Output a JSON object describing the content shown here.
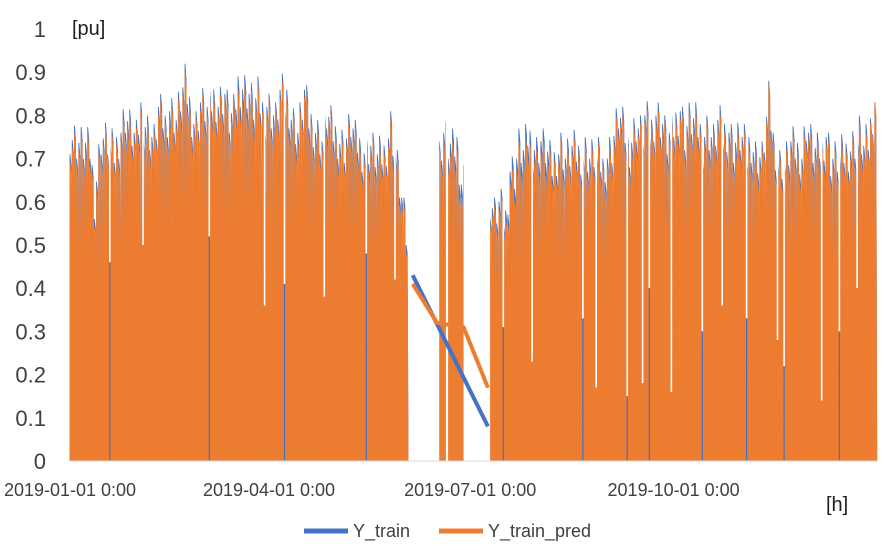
{
  "chart_data": {
    "type": "area",
    "ylabel": "[pu]",
    "xlabel": "[h]",
    "ylim": [
      0,
      1
    ],
    "y_ticks": [
      "0",
      "0.1",
      "0.2",
      "0.3",
      "0.4",
      "0.5",
      "0.6",
      "0.7",
      "0.8",
      "0.9",
      "1"
    ],
    "x_tick_labels": [
      "2019-01-01 0:00",
      "2019-04-01 0:00",
      "2019-07-01 0:00",
      "2019-10-01 0:00"
    ],
    "x_range_days": [
      0,
      365
    ],
    "x_tick_days": [
      0,
      90,
      181,
      273
    ],
    "grid": false,
    "legend_position": "bottom",
    "series": [
      {
        "name": "Y_train",
        "color": "#4472C4",
        "peaks": [
          [
            0,
            0.76
          ],
          [
            3,
            0.74
          ],
          [
            6,
            0.73
          ],
          [
            9,
            0.72
          ],
          [
            11,
            0.61
          ],
          [
            14,
            0.75
          ],
          [
            17,
            0.74
          ],
          [
            20,
            0.71
          ],
          [
            23,
            0.77
          ],
          [
            25,
            0.8
          ],
          [
            28,
            0.76
          ],
          [
            30,
            0.74
          ],
          [
            32,
            0.81
          ],
          [
            35,
            0.77
          ],
          [
            38,
            0.74
          ],
          [
            40,
            0.81
          ],
          [
            43,
            0.78
          ],
          [
            45,
            0.82
          ],
          [
            48,
            0.79
          ],
          [
            50,
            0.84
          ],
          [
            52,
            0.87
          ],
          [
            55,
            0.8
          ],
          [
            57,
            0.78
          ],
          [
            59,
            0.83
          ],
          [
            62,
            0.81
          ],
          [
            65,
            0.84
          ],
          [
            67,
            0.83
          ],
          [
            70,
            0.85
          ],
          [
            72,
            0.79
          ],
          [
            74,
            0.8
          ],
          [
            76,
            0.87
          ],
          [
            78,
            0.87
          ],
          [
            81,
            0.85
          ],
          [
            83,
            0.82
          ],
          [
            85,
            0.84
          ],
          [
            87,
            0.81
          ],
          [
            89,
            0.83
          ],
          [
            91,
            0.81
          ],
          [
            93,
            0.79
          ],
          [
            95,
            0.85
          ],
          [
            98,
            0.84
          ],
          [
            100,
            0.8
          ],
          [
            103,
            0.76
          ],
          [
            106,
            0.85
          ],
          [
            108,
            0.79
          ],
          [
            111,
            0.77
          ],
          [
            114,
            0.74
          ],
          [
            116,
            0.8
          ],
          [
            119,
            0.76
          ],
          [
            121,
            0.75
          ],
          [
            124,
            0.73
          ],
          [
            127,
            0.78
          ],
          [
            129,
            0.74
          ],
          [
            132,
            0.72
          ],
          [
            136,
            0.73
          ],
          [
            139,
            0.7
          ],
          [
            142,
            0.71
          ],
          [
            145,
            0.78
          ],
          [
            148,
            0.68
          ],
          [
            150,
            0.6
          ],
          [
            152,
            0.52
          ],
          [
            167,
            0.71
          ],
          [
            169,
            0.76
          ],
          [
            171,
            0.73
          ],
          [
            173,
            0.72
          ],
          [
            175,
            0.73
          ],
          [
            177,
            0.65
          ],
          [
            179,
            0.66
          ],
          [
            181,
            0.6
          ],
          [
            183,
            0.63
          ],
          [
            185,
            0.7
          ],
          [
            188,
            0.68
          ],
          [
            190,
            0.6
          ],
          [
            192,
            0.57
          ],
          [
            194,
            0.59
          ],
          [
            197,
            0.56
          ],
          [
            199,
            0.68
          ],
          [
            201,
            0.67
          ],
          [
            203,
            0.73
          ],
          [
            205,
            0.71
          ],
          [
            207,
            0.75
          ],
          [
            209,
            0.74
          ],
          [
            211,
            0.72
          ],
          [
            213,
            0.74
          ],
          [
            215,
            0.72
          ],
          [
            218,
            0.68
          ],
          [
            220,
            0.71
          ],
          [
            222,
            0.73
          ],
          [
            224,
            0.7
          ],
          [
            227,
            0.72
          ],
          [
            230,
            0.71
          ],
          [
            233,
            0.72
          ],
          [
            235,
            0.7
          ],
          [
            237,
            0.71
          ],
          [
            239,
            0.7
          ],
          [
            241,
            0.68
          ],
          [
            243,
            0.71
          ],
          [
            245,
            0.73
          ],
          [
            248,
            0.8
          ],
          [
            250,
            0.77
          ],
          [
            253,
            0.73
          ],
          [
            256,
            0.78
          ],
          [
            258,
            0.76
          ],
          [
            260,
            0.79
          ],
          [
            263,
            0.77
          ],
          [
            265,
            0.81
          ],
          [
            268,
            0.78
          ],
          [
            270,
            0.74
          ],
          [
            273,
            0.77
          ],
          [
            276,
            0.82
          ],
          [
            278,
            0.76
          ],
          [
            280,
            0.79
          ],
          [
            283,
            0.78
          ],
          [
            286,
            0.75
          ],
          [
            288,
            0.77
          ],
          [
            291,
            0.74
          ],
          [
            293,
            0.78
          ],
          [
            296,
            0.76
          ],
          [
            298,
            0.77
          ],
          [
            300,
            0.73
          ],
          [
            303,
            0.75
          ],
          [
            306,
            0.72
          ],
          [
            308,
            0.74
          ],
          [
            310,
            0.71
          ],
          [
            313,
            0.7
          ],
          [
            316,
            0.83
          ],
          [
            318,
            0.74
          ],
          [
            321,
            0.69
          ],
          [
            324,
            0.7
          ],
          [
            326,
            0.73
          ],
          [
            328,
            0.72
          ],
          [
            331,
            0.71
          ],
          [
            333,
            0.78
          ],
          [
            336,
            0.72
          ],
          [
            338,
            0.71
          ],
          [
            340,
            0.73
          ],
          [
            342,
            0.76
          ],
          [
            344,
            0.7
          ],
          [
            347,
            0.7
          ],
          [
            350,
            0.71
          ],
          [
            352,
            0.72
          ],
          [
            355,
            0.74
          ],
          [
            357,
            0.76
          ],
          [
            359,
            0.72
          ],
          [
            361,
            0.74
          ],
          [
            364,
            0.84
          ]
        ]
      },
      {
        "name": "Y_train_pred",
        "color": "#ED7D31",
        "peaks": [
          [
            0,
            0.74
          ],
          [
            3,
            0.72
          ],
          [
            6,
            0.71
          ],
          [
            9,
            0.7
          ],
          [
            11,
            0.59
          ],
          [
            14,
            0.73
          ],
          [
            17,
            0.73
          ],
          [
            20,
            0.69
          ],
          [
            23,
            0.75
          ],
          [
            25,
            0.78
          ],
          [
            28,
            0.74
          ],
          [
            30,
            0.72
          ],
          [
            32,
            0.79
          ],
          [
            35,
            0.75
          ],
          [
            38,
            0.72
          ],
          [
            40,
            0.79
          ],
          [
            43,
            0.76
          ],
          [
            45,
            0.8
          ],
          [
            48,
            0.77
          ],
          [
            50,
            0.82
          ],
          [
            52,
            0.85
          ],
          [
            55,
            0.78
          ],
          [
            57,
            0.76
          ],
          [
            59,
            0.81
          ],
          [
            62,
            0.79
          ],
          [
            65,
            0.82
          ],
          [
            67,
            0.81
          ],
          [
            70,
            0.83
          ],
          [
            72,
            0.77
          ],
          [
            74,
            0.78
          ],
          [
            76,
            0.84
          ],
          [
            78,
            0.84
          ],
          [
            81,
            0.83
          ],
          [
            83,
            0.8
          ],
          [
            85,
            0.82
          ],
          [
            87,
            0.79
          ],
          [
            89,
            0.81
          ],
          [
            91,
            0.79
          ],
          [
            93,
            0.77
          ],
          [
            95,
            0.83
          ],
          [
            98,
            0.82
          ],
          [
            100,
            0.78
          ],
          [
            103,
            0.74
          ],
          [
            106,
            0.83
          ],
          [
            108,
            0.77
          ],
          [
            111,
            0.75
          ],
          [
            114,
            0.72
          ],
          [
            116,
            0.78
          ],
          [
            119,
            0.74
          ],
          [
            121,
            0.73
          ],
          [
            124,
            0.71
          ],
          [
            127,
            0.76
          ],
          [
            129,
            0.72
          ],
          [
            132,
            0.7
          ],
          [
            136,
            0.71
          ],
          [
            139,
            0.68
          ],
          [
            142,
            0.69
          ],
          [
            145,
            0.76
          ],
          [
            148,
            0.66
          ],
          [
            150,
            0.58
          ],
          [
            152,
            0.5
          ],
          [
            167,
            0.69
          ],
          [
            169,
            0.74
          ],
          [
            171,
            0.7
          ],
          [
            173,
            0.69
          ],
          [
            175,
            0.7
          ],
          [
            177,
            0.62
          ],
          [
            179,
            0.63
          ],
          [
            181,
            0.57
          ],
          [
            183,
            0.6
          ],
          [
            185,
            0.67
          ],
          [
            188,
            0.65
          ],
          [
            190,
            0.58
          ],
          [
            192,
            0.55
          ],
          [
            194,
            0.57
          ],
          [
            197,
            0.54
          ],
          [
            199,
            0.65
          ],
          [
            201,
            0.64
          ],
          [
            203,
            0.7
          ],
          [
            205,
            0.68
          ],
          [
            207,
            0.72
          ],
          [
            209,
            0.71
          ],
          [
            211,
            0.69
          ],
          [
            213,
            0.71
          ],
          [
            215,
            0.69
          ],
          [
            218,
            0.66
          ],
          [
            220,
            0.69
          ],
          [
            222,
            0.71
          ],
          [
            224,
            0.68
          ],
          [
            227,
            0.7
          ],
          [
            230,
            0.69
          ],
          [
            233,
            0.7
          ],
          [
            235,
            0.68
          ],
          [
            237,
            0.69
          ],
          [
            239,
            0.68
          ],
          [
            241,
            0.66
          ],
          [
            243,
            0.69
          ],
          [
            245,
            0.71
          ],
          [
            248,
            0.78
          ],
          [
            250,
            0.75
          ],
          [
            253,
            0.71
          ],
          [
            256,
            0.76
          ],
          [
            258,
            0.74
          ],
          [
            260,
            0.77
          ],
          [
            263,
            0.75
          ],
          [
            265,
            0.79
          ],
          [
            268,
            0.76
          ],
          [
            270,
            0.72
          ],
          [
            273,
            0.75
          ],
          [
            276,
            0.8
          ],
          [
            278,
            0.74
          ],
          [
            280,
            0.77
          ],
          [
            283,
            0.76
          ],
          [
            286,
            0.73
          ],
          [
            288,
            0.75
          ],
          [
            291,
            0.72
          ],
          [
            293,
            0.76
          ],
          [
            296,
            0.74
          ],
          [
            298,
            0.75
          ],
          [
            300,
            0.71
          ],
          [
            303,
            0.73
          ],
          [
            306,
            0.7
          ],
          [
            308,
            0.72
          ],
          [
            310,
            0.69
          ],
          [
            313,
            0.68
          ],
          [
            316,
            0.82
          ],
          [
            318,
            0.72
          ],
          [
            321,
            0.67
          ],
          [
            324,
            0.68
          ],
          [
            326,
            0.71
          ],
          [
            328,
            0.7
          ],
          [
            331,
            0.69
          ],
          [
            333,
            0.76
          ],
          [
            336,
            0.7
          ],
          [
            338,
            0.69
          ],
          [
            340,
            0.71
          ],
          [
            342,
            0.74
          ],
          [
            344,
            0.68
          ],
          [
            347,
            0.68
          ],
          [
            350,
            0.69
          ],
          [
            352,
            0.7
          ],
          [
            355,
            0.72
          ],
          [
            357,
            0.74
          ],
          [
            359,
            0.7
          ],
          [
            361,
            0.72
          ],
          [
            364,
            0.84
          ]
        ]
      }
    ],
    "gaps_days": [
      [
        154,
        167
      ],
      [
        170,
        171
      ],
      [
        178,
        190
      ]
    ],
    "bridge_lines": [
      {
        "series": "Y_train",
        "points": [
          [
            155,
            0.43
          ],
          [
            189,
            0.08
          ]
        ]
      },
      {
        "series": "Y_train_pred",
        "points": [
          [
            155,
            0.41
          ],
          [
            166,
            0.32
          ],
          [
            178,
            0.31
          ],
          [
            189,
            0.17
          ]
        ]
      }
    ],
    "dips": [
      [
        18,
        0.46
      ],
      [
        33,
        0.5
      ],
      [
        63,
        0.52
      ],
      [
        88,
        0.36
      ],
      [
        97,
        0.41
      ],
      [
        115,
        0.38
      ],
      [
        134,
        0.48
      ],
      [
        147,
        0.42
      ],
      [
        196,
        0.31
      ],
      [
        209,
        0.23
      ],
      [
        232,
        0.33
      ],
      [
        238,
        0.17
      ],
      [
        252,
        0.15
      ],
      [
        259,
        0.18
      ],
      [
        262,
        0.4
      ],
      [
        272,
        0.16
      ],
      [
        286,
        0.3
      ],
      [
        295,
        0.36
      ],
      [
        306,
        0.33
      ],
      [
        320,
        0.28
      ],
      [
        323,
        0.22
      ],
      [
        340,
        0.14
      ],
      [
        348,
        0.3
      ],
      [
        356,
        0.4
      ]
    ]
  }
}
